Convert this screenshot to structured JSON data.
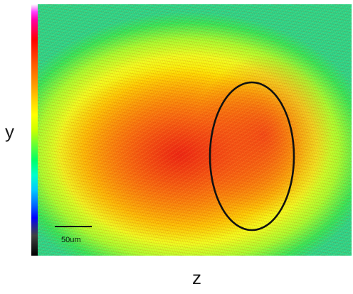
{
  "axes": {
    "y_label": "y",
    "z_label": "z"
  },
  "scale_bar": {
    "label": "50um"
  },
  "colors": {
    "ellipse_stroke": "#111111",
    "hot": "#e81414",
    "mid": "#ffe800",
    "cool": "#2cd88a"
  }
}
